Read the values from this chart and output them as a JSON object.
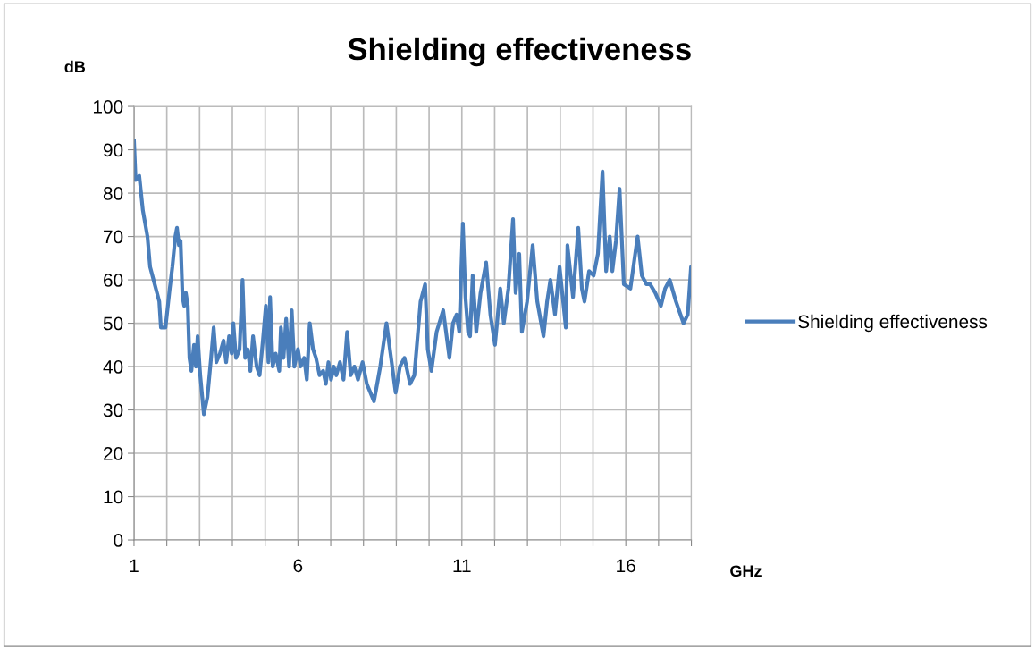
{
  "chart_data": {
    "type": "line",
    "title": "Shielding effectiveness",
    "xlabel": "GHz",
    "ylabel": "dB",
    "xlim": [
      1,
      18
    ],
    "ylim": [
      0,
      100
    ],
    "xticks": [
      1,
      {
        "value": 2,
        "label": null
      },
      {
        "value": 3,
        "label": null
      },
      {
        "value": 4,
        "label": null
      },
      {
        "value": 5,
        "label": null
      },
      6,
      {
        "value": 7,
        "label": null
      },
      {
        "value": 8,
        "label": null
      },
      {
        "value": 9,
        "label": null
      },
      {
        "value": 10,
        "label": null
      },
      11,
      {
        "value": 12,
        "label": null
      },
      {
        "value": 13,
        "label": null
      },
      {
        "value": 14,
        "label": null
      },
      {
        "value": 15,
        "label": null
      },
      16,
      {
        "value": 17,
        "label": null
      },
      {
        "value": 18,
        "label": null
      }
    ],
    "yticks": [
      0,
      10,
      20,
      30,
      40,
      50,
      60,
      70,
      80,
      90,
      100
    ],
    "grid": true,
    "legend": "right",
    "marker": "none",
    "line_style": "solid",
    "series": [
      {
        "name": "Shielding effectiveness",
        "color": "#4a7ebb",
        "x": [
          1.0,
          1.05,
          1.16,
          1.27,
          1.41,
          1.49,
          1.63,
          1.77,
          1.82,
          1.96,
          2.09,
          2.17,
          2.26,
          2.31,
          2.37,
          2.42,
          2.48,
          2.53,
          2.58,
          2.64,
          2.69,
          2.75,
          2.83,
          2.89,
          2.94,
          3.02,
          3.13,
          3.24,
          3.35,
          3.43,
          3.51,
          3.62,
          3.73,
          3.81,
          3.9,
          3.98,
          4.03,
          4.11,
          4.22,
          4.31,
          4.39,
          4.47,
          4.55,
          4.63,
          4.74,
          4.83,
          4.93,
          5.02,
          5.1,
          5.15,
          5.23,
          5.32,
          5.43,
          5.48,
          5.56,
          5.64,
          5.73,
          5.81,
          5.89,
          6.0,
          6.08,
          6.19,
          6.27,
          6.36,
          6.46,
          6.55,
          6.66,
          6.77,
          6.85,
          6.93,
          7.01,
          7.09,
          7.17,
          7.28,
          7.39,
          7.5,
          7.61,
          7.72,
          7.83,
          7.97,
          8.1,
          8.32,
          8.51,
          8.7,
          8.84,
          8.98,
          9.11,
          9.25,
          9.42,
          9.55,
          9.74,
          9.88,
          9.96,
          10.07,
          10.23,
          10.43,
          10.62,
          10.73,
          10.84,
          10.92,
          11.03,
          11.11,
          11.19,
          11.25,
          11.33,
          11.44,
          11.57,
          11.74,
          11.87,
          12.01,
          12.17,
          12.28,
          12.42,
          12.56,
          12.64,
          12.75,
          12.83,
          12.99,
          13.16,
          13.3,
          13.49,
          13.6,
          13.7,
          13.84,
          13.98,
          14.17,
          14.22,
          14.39,
          14.55,
          14.66,
          14.74,
          14.88,
          15.02,
          15.15,
          15.29,
          15.4,
          15.51,
          15.59,
          15.7,
          15.81,
          15.94,
          16.14,
          16.36,
          16.49,
          16.63,
          16.74,
          16.9,
          17.07,
          17.2,
          17.34,
          17.53,
          17.76,
          17.89,
          17.99,
          18.0
        ],
        "values": [
          92,
          83,
          84,
          76,
          70,
          63,
          59,
          55,
          49,
          49,
          58,
          63,
          70,
          72,
          68,
          69,
          56,
          54,
          57,
          54,
          42,
          39,
          45,
          40,
          47,
          38,
          29,
          33,
          42,
          49,
          41,
          43,
          46,
          41,
          47,
          43,
          50,
          42,
          44,
          60,
          42,
          44,
          39,
          47,
          40,
          38,
          46,
          54,
          41,
          56,
          40,
          43,
          39,
          49,
          42,
          51,
          40,
          53,
          40,
          44,
          40,
          42,
          37,
          50,
          44,
          42,
          38,
          39,
          36,
          41,
          37,
          40,
          38,
          41,
          37,
          48,
          38,
          40,
          37,
          41,
          36,
          32,
          40,
          50,
          42,
          34,
          40,
          42,
          36,
          38,
          55,
          59,
          44,
          39,
          48,
          53,
          42,
          50,
          52,
          48,
          73,
          56,
          48,
          47,
          61,
          48,
          57,
          64,
          52,
          45,
          58,
          50,
          58,
          74,
          57,
          66,
          48,
          55,
          68,
          55,
          47,
          55,
          60,
          52,
          63,
          49,
          68,
          56,
          72,
          58,
          55,
          62,
          61,
          66,
          85,
          62,
          70,
          62,
          69,
          81,
          59,
          58,
          70,
          61,
          59,
          59,
          57,
          54,
          58,
          60,
          55,
          50,
          52,
          63,
          57
        ]
      }
    ]
  }
}
